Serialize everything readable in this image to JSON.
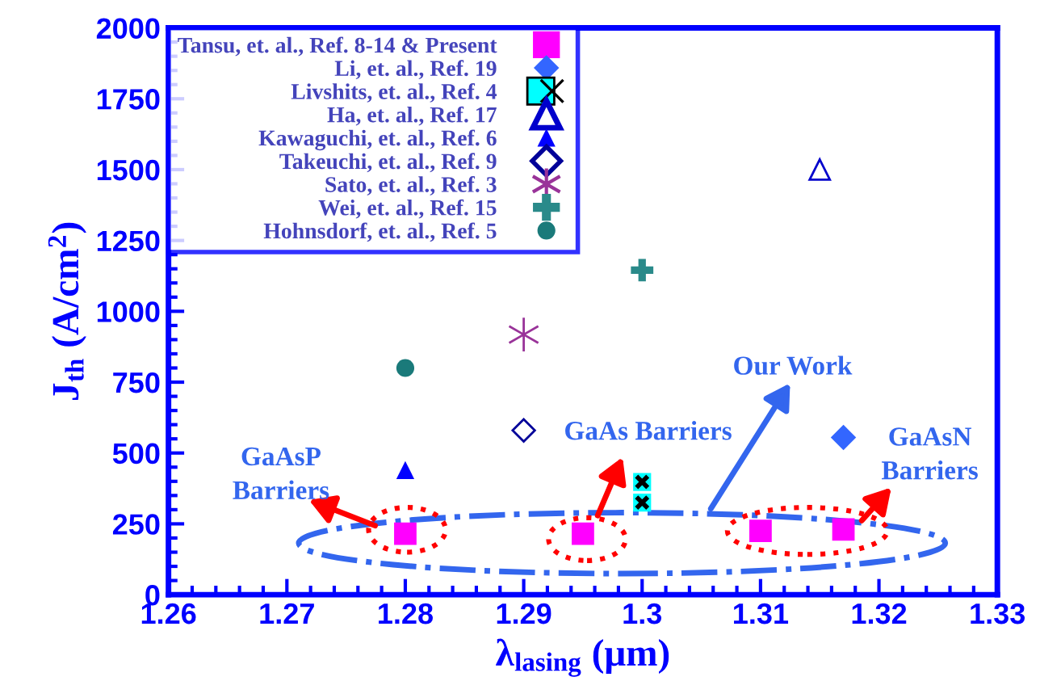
{
  "chart_data": {
    "type": "scatter",
    "xlabel": "λ$_{lasing}$ (μm)",
    "ylabel": "J$_{th}$ (A/cm$^{2}$)",
    "xlim": [
      1.26,
      1.33
    ],
    "xticks": [
      {
        "value": 1.26,
        "label": "1.26"
      },
      {
        "value": 1.27,
        "label": "1.27"
      },
      {
        "value": 1.28,
        "label": "1.28"
      },
      {
        "value": 1.29,
        "label": "1.29"
      },
      {
        "value": 1.3,
        "label": "1.3"
      },
      {
        "value": 1.31,
        "label": "1.31"
      },
      {
        "value": 1.32,
        "label": "1.32"
      },
      {
        "value": 1.33,
        "label": "1.33"
      }
    ],
    "ylim": [
      0,
      2000
    ],
    "yticks": [
      0,
      250,
      500,
      750,
      1000,
      1250,
      1500,
      1750,
      2000
    ],
    "grid": false,
    "legend": "top left",
    "series": [
      {
        "name": "Tansu, et. al., Ref. 8-14 & Present",
        "color": "#ff00ff",
        "marker": "square",
        "x": [
          1.28,
          1.295,
          1.31,
          1.317
        ],
        "values": [
          215,
          215,
          225,
          230
        ]
      },
      {
        "name": "Li, et. al., Ref. 19",
        "color": "#3366ff",
        "marker": "diamond",
        "x": [
          1.317
        ],
        "values": [
          555
        ]
      },
      {
        "name": "Livshits, et. al., Ref. 4",
        "color": "#00ffff",
        "marker": "square",
        "x": [
          1.3,
          1.3
        ],
        "values": [
          398,
          325
        ]
      },
      {
        "name": "Ha, et. al., Ref. 17",
        "color": "#0000cc",
        "marker": "triangle",
        "x": [
          1.315
        ],
        "values": [
          1500
        ]
      },
      {
        "name": "Kawaguchi, et. al., Ref. 6",
        "color": "#0000ff",
        "marker": "triangle",
        "x": [
          1.28
        ],
        "values": [
          440
        ]
      },
      {
        "name": "Takeuchi, et. al., Ref. 9",
        "color": "#000099",
        "marker": "diamond",
        "x": [
          1.29
        ],
        "values": [
          580
        ]
      },
      {
        "name": "Sato, et. al., Ref. 3",
        "color": "#993399",
        "marker": "cross",
        "x": [
          1.29
        ],
        "values": [
          918
        ]
      },
      {
        "name": "Wei, et. al., Ref. 15",
        "color": "#2a8a8a",
        "marker": "cross",
        "x": [
          1.3
        ],
        "values": [
          1145
        ]
      },
      {
        "name": "Hohnsdorf, et. al., Ref. 5",
        "color": "#1a7a7a",
        "marker": "circle",
        "x": [
          1.28
        ],
        "values": [
          800
        ]
      }
    ],
    "annotations": [
      "GaAsP\nBarriers",
      "GaAs Barriers",
      "Our Work",
      "GaAsN\nBarriers"
    ]
  }
}
